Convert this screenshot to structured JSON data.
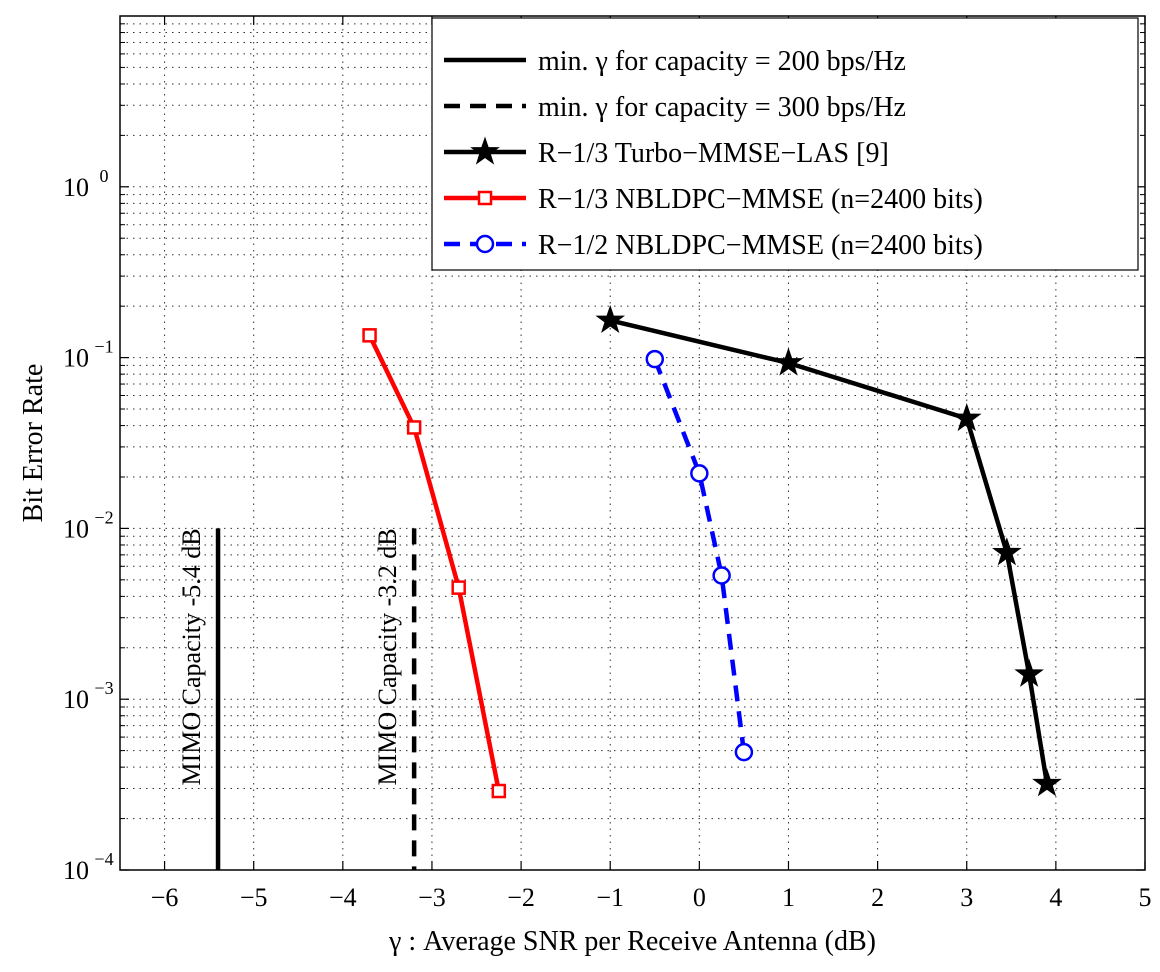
{
  "chart_data": {
    "type": "line",
    "title": "",
    "xlabel": "γ : Average SNR per Receive Antenna (dB)",
    "ylabel": "Bit Error Rate",
    "xlim": [
      -6.5,
      5
    ],
    "ylim": [
      0.0001,
      10
    ],
    "yscale": "log",
    "grid": true,
    "legend_position": "top-right",
    "xticks": [
      -6,
      -5,
      -4,
      -3,
      -2,
      -1,
      0,
      1,
      2,
      3,
      4,
      5
    ],
    "xtick_labels": [
      "−6",
      "−5",
      "−4",
      "−3",
      "−2",
      "−1",
      "0",
      "1",
      "2",
      "3",
      "4",
      "5"
    ],
    "yticks": [
      {
        "value": 0.0001,
        "base": "10",
        "exp": "−4"
      },
      {
        "value": 0.001,
        "base": "10",
        "exp": "−3"
      },
      {
        "value": 0.01,
        "base": "10",
        "exp": "−2"
      },
      {
        "value": 0.1,
        "base": "10",
        "exp": "−1"
      },
      {
        "value": 1,
        "base": "10",
        "exp": "0"
      }
    ],
    "series": [
      {
        "name": "min. γ for capacity = 200 bps/Hz",
        "color": "#000000",
        "dash": "solid",
        "marker": "none",
        "x": [
          -5.4,
          -5.4
        ],
        "y": [
          0.01,
          0.0001
        ]
      },
      {
        "name": "min. γ for capacity = 300 bps/Hz",
        "color": "#000000",
        "dash": "dashed",
        "marker": "none",
        "x": [
          -3.2,
          -3.2
        ],
        "y": [
          0.01,
          0.0001
        ]
      },
      {
        "name": "R−1/3 Turbo−MMSE−LAS [9]",
        "color": "#000000",
        "dash": "solid",
        "marker": "star",
        "x": [
          -1,
          1,
          3,
          3.45,
          3.7,
          3.9
        ],
        "y": [
          0.165,
          0.093,
          0.044,
          0.0072,
          0.0014,
          0.00032
        ]
      },
      {
        "name": "R−1/3 NBLDPC−MMSE (n=2400 bits)",
        "color": "#ff0000",
        "dash": "solid",
        "marker": "square",
        "x": [
          -3.7,
          -3.2,
          -2.7,
          -2.25
        ],
        "y": [
          0.135,
          0.039,
          0.0045,
          0.00029
        ]
      },
      {
        "name": "R−1/2 NBLDPC−MMSE (n=2400 bits)",
        "color": "#0000ff",
        "dash": "dashed",
        "marker": "circle",
        "x": [
          -0.5,
          0,
          0.25,
          0.5
        ],
        "y": [
          0.098,
          0.021,
          0.0053,
          0.00049
        ]
      }
    ],
    "annotations": [
      {
        "text": "MIMO Capacity -5.4 dB",
        "x": -5.4,
        "y": 0.01,
        "rotation": -90
      },
      {
        "text": "MIMO Capacity -3.2 dB",
        "x": -3.2,
        "y": 0.01,
        "rotation": -90
      }
    ]
  }
}
